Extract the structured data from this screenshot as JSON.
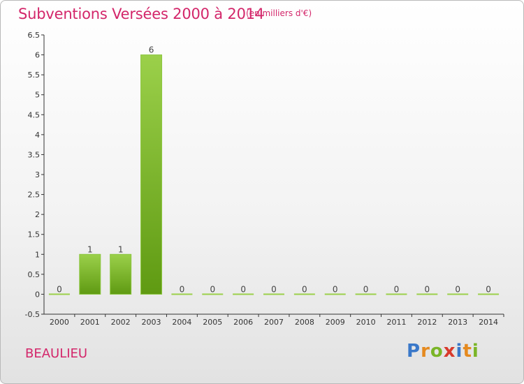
{
  "header": {
    "title": "Subventions Versées 2000 à 2014",
    "subtitle": "(en milliers d'€)"
  },
  "footer": {
    "city": "BEAULIEU",
    "logo_letters": [
      "P",
      "r",
      "o",
      "x",
      "i",
      "t",
      "i"
    ],
    "logo_colors": [
      "#3a78c9",
      "#e58a1f",
      "#7ab527",
      "#d83a2c",
      "#3a78c9",
      "#e58a1f",
      "#7ab527"
    ]
  },
  "chart_data": {
    "type": "bar",
    "categories": [
      "2000",
      "2001",
      "2002",
      "2003",
      "2004",
      "2005",
      "2006",
      "2007",
      "2008",
      "2009",
      "2010",
      "2011",
      "2012",
      "2013",
      "2014"
    ],
    "values": [
      0,
      1,
      1,
      6,
      0,
      0,
      0,
      0,
      0,
      0,
      0,
      0,
      0,
      0,
      0
    ],
    "value_labels": [
      "0",
      "1",
      "1",
      "6",
      "0",
      "0",
      "0",
      "0",
      "0",
      "0",
      "0",
      "0",
      "0",
      "0",
      "0"
    ],
    "yticks": [
      "-0.5",
      "0",
      "0.5",
      "1",
      "1.5",
      "2",
      "2.5",
      "3",
      "3.5",
      "4",
      "4.5",
      "5",
      "5.5",
      "6",
      "6.5"
    ],
    "ylim": [
      -0.5,
      6.5
    ],
    "bar_color_top": "#9bd04a",
    "bar_color_bottom": "#5f9a12",
    "zero_bar_color": "#9bd04a"
  }
}
